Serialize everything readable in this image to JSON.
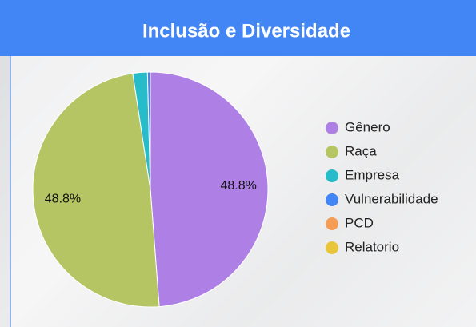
{
  "chart_data": {
    "type": "pie",
    "title": "Inclusão e Diversidade",
    "categories": [
      "Gênero",
      "Raça",
      "Empresa",
      "Vulnerabilidade",
      "PCD",
      "Relatorio"
    ],
    "values": [
      48.8,
      48.8,
      2.0,
      0.4,
      0,
      0
    ],
    "value_labels": [
      "48.8%",
      "48.8%",
      null,
      null,
      null,
      null
    ],
    "colors": [
      "#ae80e6",
      "#b5c563",
      "#26bcc9",
      "#4285f4",
      "#f59d56",
      "#e9c53b"
    ],
    "legend": "right"
  }
}
